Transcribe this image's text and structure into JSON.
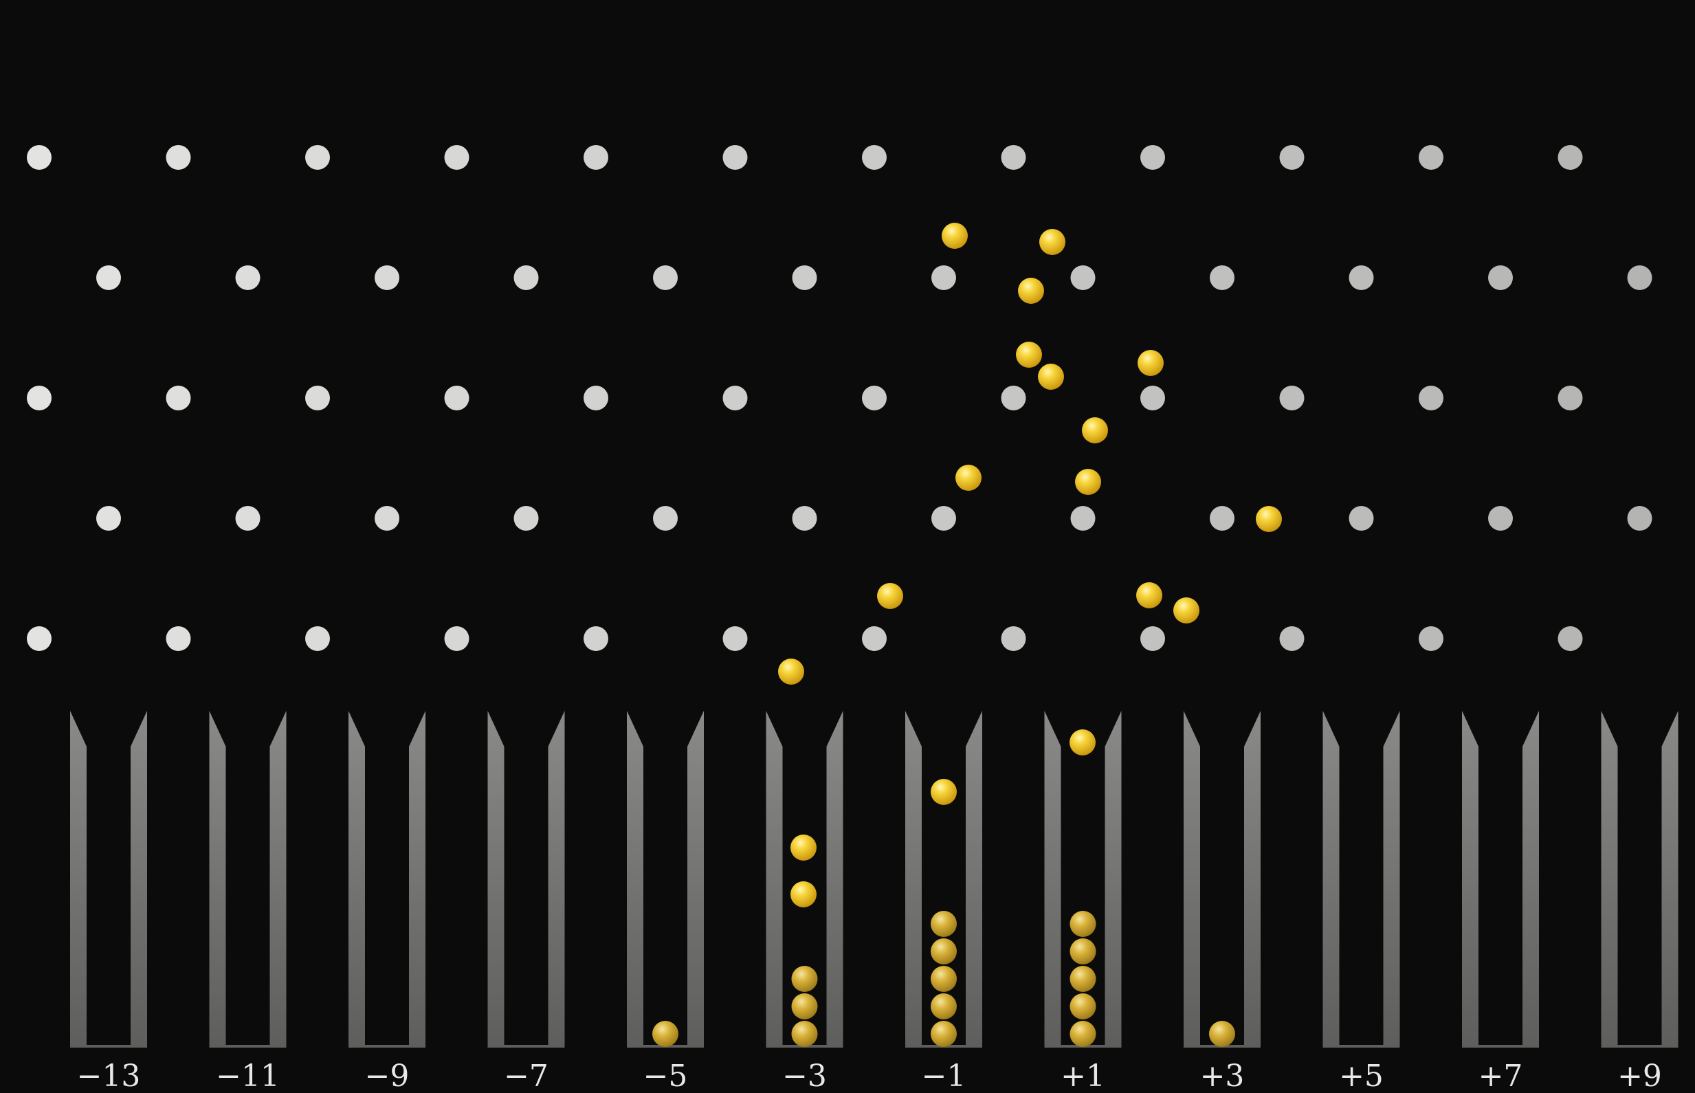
{
  "bins": [
    {
      "label": "−13",
      "balls": 0
    },
    {
      "label": "−11",
      "balls": 0
    },
    {
      "label": "−9",
      "balls": 0
    },
    {
      "label": "−7",
      "balls": 0
    },
    {
      "label": "−5",
      "balls": 1
    },
    {
      "label": "−3",
      "balls": 3
    },
    {
      "label": "−1",
      "balls": 5
    },
    {
      "label": "+1",
      "balls": 5
    },
    {
      "label": "+3",
      "balls": 1
    },
    {
      "label": "+5",
      "balls": 0
    },
    {
      "label": "+7",
      "balls": 0
    },
    {
      "label": "+9",
      "balls": 0
    }
  ],
  "falling_ball_count": 17,
  "colors": {
    "background": "#0b0b0b",
    "peg": "#e4e4e2",
    "ball": "#f2c21e",
    "bin_wall": "#7a7a78",
    "label": "#e8e8e8"
  }
}
